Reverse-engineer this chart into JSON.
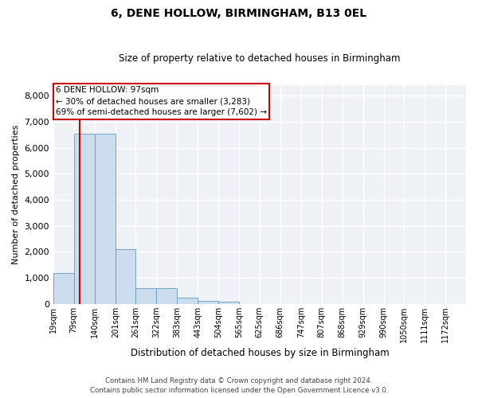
{
  "title": "6, DENE HOLLOW, BIRMINGHAM, B13 0EL",
  "subtitle": "Size of property relative to detached houses in Birmingham",
  "xlabel": "Distribution of detached houses by size in Birmingham",
  "ylabel": "Number of detached properties",
  "bar_color": "#ccdded",
  "bar_edge_color": "#6699bb",
  "vline_x": 97,
  "vline_color": "#cc0000",
  "annotation_text": "6 DENE HOLLOW: 97sqm\n← 30% of detached houses are smaller (3,283)\n69% of semi-detached houses are larger (7,602) →",
  "annotation_box_color": "white",
  "annotation_box_edge": "#cc0000",
  "footer1": "Contains HM Land Registry data © Crown copyright and database right 2024.",
  "footer2": "Contains public sector information licensed under the Open Government Licence v3.0.",
  "bins": [
    19,
    79,
    140,
    201,
    261,
    322,
    383,
    443,
    504,
    565,
    625,
    686,
    747,
    807,
    868,
    929,
    990,
    1050,
    1111,
    1172,
    1232
  ],
  "counts": [
    1200,
    6550,
    6550,
    2100,
    600,
    600,
    250,
    120,
    80,
    0,
    0,
    0,
    0,
    0,
    0,
    0,
    0,
    0,
    0,
    0
  ],
  "ylim": [
    0,
    8400
  ],
  "yticks": [
    0,
    1000,
    2000,
    3000,
    4000,
    5000,
    6000,
    7000,
    8000
  ],
  "background_color": "#eef2f7"
}
